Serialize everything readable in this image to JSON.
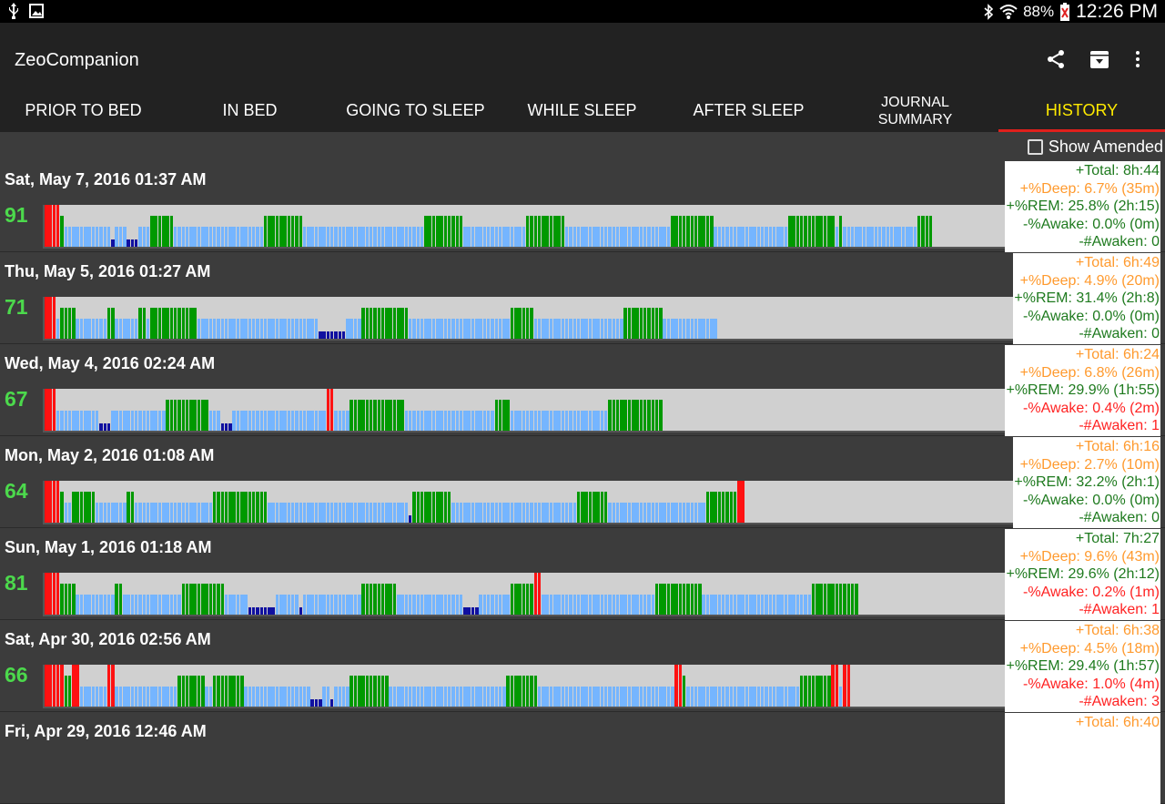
{
  "status": {
    "battery": "88%",
    "time": "12:26 PM"
  },
  "app": {
    "title": "ZeoCompanion"
  },
  "colors": {
    "awake": "#ff1111",
    "rem": "#009900",
    "light": "#75b5ff",
    "deep": "#1010a0",
    "green_text": "#1e7a1e",
    "orange_text": "#ff9a2e",
    "red_text": "#ff2222",
    "score": "#4cd94c",
    "tab_active": "#ffea00"
  },
  "tabs": [
    {
      "label": "PRIOR TO BED"
    },
    {
      "label": "IN BED"
    },
    {
      "label": "GOING TO SLEEP"
    },
    {
      "label": "WHILE SLEEP"
    },
    {
      "label": "AFTER SLEEP"
    },
    {
      "label": "JOURNAL\nSUMMARY"
    },
    {
      "label": "HISTORY",
      "active": true
    }
  ],
  "show_amended": {
    "label": "Show Amended",
    "checked": false
  },
  "stage_legend": {
    "A": "awake",
    "R": "rem",
    "L": "light",
    "D": "deep"
  },
  "entries": [
    {
      "date": "Sat, May 7, 2016 01:37 AM",
      "score": "91",
      "summary": [
        {
          "text": "+Total: 8h:44",
          "tone": "green"
        },
        {
          "text": "+%Deep: 6.7% (35m)",
          "tone": "orange"
        },
        {
          "text": "+%REM: 25.8% (2h:15)",
          "tone": "green"
        },
        {
          "text": "-%Awake: 0.0% (0m)",
          "tone": "green"
        },
        {
          "text": "-#Awaken: 0",
          "tone": "green"
        }
      ],
      "hypnogram": "AAAARLLLLLLLLLLLLDLLLDDDLLLRRRRRRLLLLLLLLLLLLLLLLLLLLLLLRRRRRRRRRRLLLLLLLLLLLLLLLLLLLLLLLLLLLLLLLRRRRRRRRRRLLLLLLLLLLLLLLLLRRRRRRRRRRLLLLLLLLLLLLLLLLLLLLLLLLLLLRRRRRRRRRRRLLLLLLLLLLLLLLLLLLLRRRRRRRRRRRRLRLLLLLLLLLLLLLLLLLLLRRRR"
    },
    {
      "date": "Thu, May 5, 2016 01:27 AM",
      "score": "71",
      "summary": [
        {
          "text": "+Total: 6h:49",
          "tone": "orange"
        },
        {
          "text": "+%Deep: 4.9% (20m)",
          "tone": "orange"
        },
        {
          "text": "+%REM: 31.4% (2h:8)",
          "tone": "green"
        },
        {
          "text": "-%Awake: 0.0% (0m)",
          "tone": "green"
        },
        {
          "text": "-#Awaken: 0",
          "tone": "green"
        }
      ],
      "hypnogram": "AAALRRRRLLLLLLLLRRLLLLLLRRLRRRRRRRRRRRRLLLLLLLLLLLLLLLLLLLLLLLLLLLLLLLDDDDDDDLLLLRRRRRRRRRRRRLLLLLLLLLLLLLLLLLLLLLLLLLLRRRRRRLLLLLLLLLLLLLLLLLLLLLLLRRRRRRRRRRLLLLLLLLLLLLLL"
    },
    {
      "date": "Wed, May 4, 2016 02:24 AM",
      "score": "67",
      "summary": [
        {
          "text": "+Total: 6h:24",
          "tone": "orange"
        },
        {
          "text": "+%Deep: 6.8% (26m)",
          "tone": "orange"
        },
        {
          "text": "+%REM: 29.9% (1h:55)",
          "tone": "green"
        },
        {
          "text": "-%Awake: 0.4% (2m)",
          "tone": "red"
        },
        {
          "text": "-#Awaken: 1",
          "tone": "red"
        }
      ],
      "hypnogram": "AAALLLLLLLLLLLDDDLLLLLLLLLLLLLLRRRRRRRRRRRLLLDDDLLLLLLLLLLLLLLLLLLLLLLLLAALLLLRRRRRRRRRRRRRRLLLLLLLLLLLLLLLLLLLLLLLRRRRLLLLLLLLLLLLLLLLLLLLLLLLLRRRRRRRRRRRRRR"
    },
    {
      "date": "Mon, May 2, 2016 01:08 AM",
      "score": "64",
      "summary": [
        {
          "text": "+Total: 6h:16",
          "tone": "orange"
        },
        {
          "text": "+%Deep: 2.7% (10m)",
          "tone": "orange"
        },
        {
          "text": "+%REM: 32.2% (2h:1)",
          "tone": "green"
        },
        {
          "text": "-%Awake: 0.0% (0m)",
          "tone": "green"
        },
        {
          "text": "-#Awaken: 0",
          "tone": "green"
        }
      ],
      "hypnogram": "AAAARLLRRRRRRLLLLLLLLRRLLLLLLLLLLLLLLLLLLLLRRRRRRRRRRRRRRLLLLLLLLLLLLLLLLLLLLLLLLLLLLLLLLLLLLDRRRRRRRRRRLLLLLLLLLLLLLLLLLLLLLLLLLLLLLLLLRRRRRRRRLLLLLLLLLLLLLLLLLLLLLLLLLRRRRRRRRAA"
    },
    {
      "date": "Sun, May 1, 2016 01:18 AM",
      "score": "81",
      "summary": [
        {
          "text": "+Total: 7h:27",
          "tone": "green"
        },
        {
          "text": "+%Deep: 9.6% (43m)",
          "tone": "orange"
        },
        {
          "text": "+%REM: 29.6% (2h:12)",
          "tone": "green"
        },
        {
          "text": "-%Awake: 0.2% (1m)",
          "tone": "red"
        },
        {
          "text": "-#Awaken: 1",
          "tone": "red"
        }
      ],
      "hypnogram": "AAAARRRRLLLLLLLLLLRRLLLLLLLLLLLLLLLRRRRRRRRRRRLLLLLLDDDDDDDLLLLLLDLLLLLLLLLLLLLLLRRRRRRRRRLLLLLLLLLLLLLLLLLDDDDLLLLLLLLRRRRRRAALLLLLLLLLLLLLLLLLLLLLLLLLLLLLRRRRRRRRRRRRLLLLLLLLLLLLLLLLLLLLLLLLLLLLRRRRRRRRRRRR"
    },
    {
      "date": "Sat, Apr 30, 2016 02:56 AM",
      "score": "66",
      "summary": [
        {
          "text": "+Total: 6h:38",
          "tone": "orange"
        },
        {
          "text": "+%Deep: 4.5% (18m)",
          "tone": "orange"
        },
        {
          "text": "+%REM: 29.4% (1h:57)",
          "tone": "green"
        },
        {
          "text": "-%Awake: 1.0% (4m)",
          "tone": "red"
        },
        {
          "text": "-#Awaken: 3",
          "tone": "red"
        }
      ],
      "hypnogram": "AAAAARRAALLLLLLLAALLLLLLLLLLLLLLLLRRRRRRRLLRRRRRRRRLLLLLLLLLLLLLLLLLDDDLLDLLLLRRRRRRRRRRLLLLLLLLLLLLLLLLLLLLLLLLLLLLLLRRRRRRRRLLLLLLLLLLLLLLLLLLLLLLLLLLLLLLLLLLLAARLLLLLLLLLLLLLLLLLLLLLLLLLLLLLRRRRRRRRAALAA"
    },
    {
      "date": "Fri, Apr 29, 2016 12:46 AM",
      "score": "",
      "summary": [
        {
          "text": "+Total: 6h:40",
          "tone": "orange"
        }
      ],
      "hypnogram": ""
    }
  ]
}
